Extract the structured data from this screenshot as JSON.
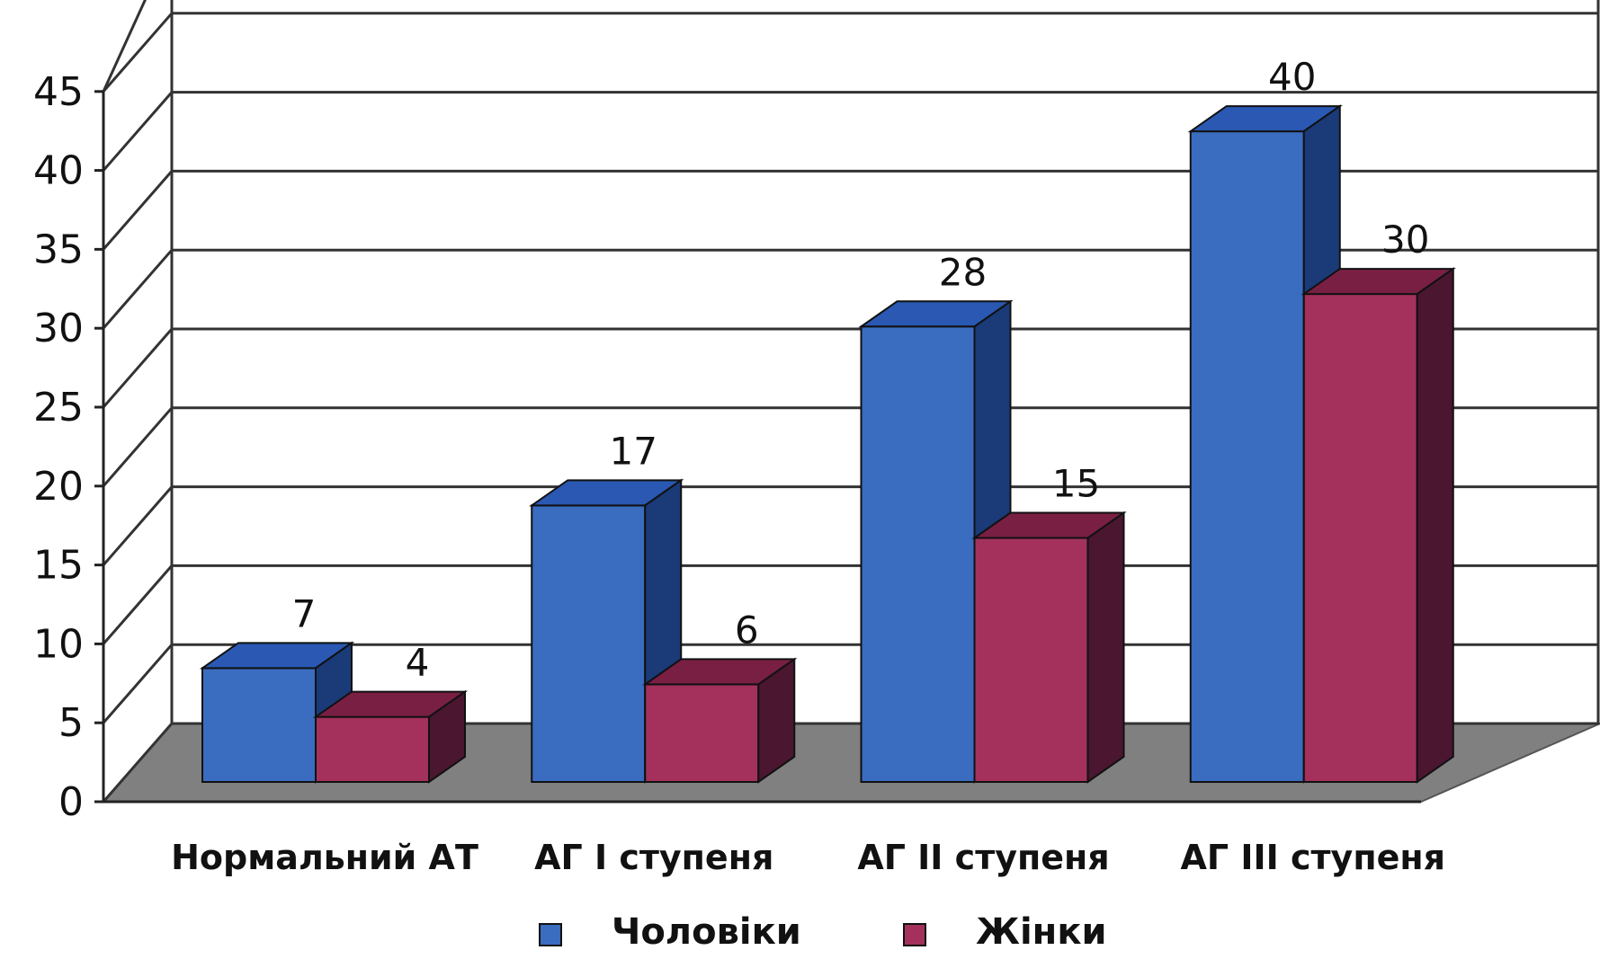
{
  "chart_data": {
    "type": "bar",
    "style": "3d-clustered",
    "title": "",
    "xlabel": "",
    "ylabel": "",
    "ylim": [
      0,
      45
    ],
    "yticks": [
      0,
      5,
      10,
      15,
      20,
      25,
      30,
      35,
      40,
      45
    ],
    "grid": true,
    "legend_position": "bottom",
    "categories": [
      "Нормальний АТ",
      "АГ І ступеня",
      "АГ ІІ ступеня",
      "АГ ІІІ ступеня"
    ],
    "series": [
      {
        "name": "Чоловіки",
        "values": [
          7,
          17,
          28,
          40
        ],
        "color": "#3a6cc0",
        "top_color": "#2a58b2",
        "side_color": "#1a3a78"
      },
      {
        "name": "Жінки",
        "values": [
          4,
          6,
          15,
          30
        ],
        "color": "#a3315c",
        "top_color": "#7a1f44",
        "side_color": "#4a1630"
      }
    ],
    "data_labels": true,
    "floor_color": "#808080",
    "grid_color": "#333333"
  }
}
